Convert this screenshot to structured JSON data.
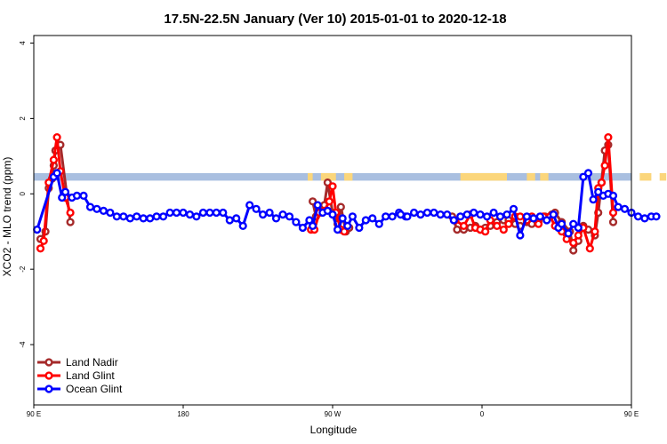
{
  "chart_data": {
    "type": "line",
    "title": "17.5N-22.5N January (Ver 10)   2015-01-01 to 2020-12-18",
    "xlabel": "Longitude",
    "ylabel": "XCO2 - MLO trend (ppm)",
    "xlim": [
      90,
      450
    ],
    "ylim": [
      -5.6,
      4.2
    ],
    "x_ticks": [
      {
        "value": 90,
        "label": "90 E"
      },
      {
        "value": 180,
        "label": "180"
      },
      {
        "value": 270,
        "label": "90 W"
      },
      {
        "value": 360,
        "label": "0"
      },
      {
        "value": 450,
        "label": "90 E"
      },
      {
        "value": 540,
        "label": "180"
      }
    ],
    "y_ticks": [
      {
        "value": 4,
        "label": "4"
      },
      {
        "value": 2,
        "label": "2"
      },
      {
        "value": 0,
        "label": "0"
      },
      {
        "value": -2,
        "label": "-2"
      },
      {
        "value": -4,
        "label": "-4"
      }
    ],
    "legend_position": "bottom-left",
    "landmask_band": {
      "y_range": [
        0.35,
        0.55
      ],
      "ocean_color": "#a9bfe0",
      "land_color": "#fbd67b",
      "land_segments": [
        [
          255,
          258
        ],
        [
          263,
          272
        ],
        [
          277,
          282
        ],
        [
          347,
          375
        ],
        [
          387,
          392
        ],
        [
          395,
          400
        ],
        [
          455,
          462
        ],
        [
          467,
          471
        ]
      ]
    },
    "series": [
      {
        "name": "Land Nadir",
        "color": "#a52a2a",
        "segments": [
          [
            [
              94,
              -1.2
            ],
            [
              97,
              -1.0
            ],
            [
              99,
              0.15
            ],
            [
              101,
              0.4
            ],
            [
              102,
              0.75
            ],
            [
              103,
              1.15
            ],
            [
              105,
              1.3
            ],
            [
              106,
              1.3
            ],
            [
              112,
              -0.75
            ]
          ],
          [
            [
              258,
              -0.2
            ],
            [
              260,
              -0.6
            ],
            [
              265,
              -0.3
            ],
            [
              267,
              0.3
            ],
            [
              270,
              -0.5
            ],
            [
              273,
              -0.8
            ],
            [
              275,
              -0.35
            ],
            [
              278,
              -1.0
            ],
            [
              280,
              -0.9
            ]
          ],
          [
            [
              342,
              -0.6
            ],
            [
              345,
              -0.95
            ],
            [
              349,
              -0.95
            ],
            [
              353,
              -0.9
            ],
            [
              356,
              -0.85
            ],
            [
              359,
              -0.95
            ],
            [
              362,
              -0.9
            ],
            [
              365,
              -0.85
            ],
            [
              369,
              -0.75
            ],
            [
              373,
              -0.7
            ],
            [
              376,
              -0.7
            ],
            [
              380,
              -0.8
            ],
            [
              383,
              -0.85
            ],
            [
              387,
              -0.75
            ],
            [
              390,
              -0.8
            ],
            [
              394,
              -0.75
            ],
            [
              398,
              -0.6
            ],
            [
              402,
              -0.55
            ],
            [
              404,
              -0.5
            ],
            [
              408,
              -0.75
            ],
            [
              413,
              -1.0
            ],
            [
              415,
              -1.5
            ],
            [
              418,
              -1.25
            ],
            [
              421,
              -0.85
            ],
            [
              424,
              -0.95
            ],
            [
              428,
              -1.1
            ],
            [
              430,
              -0.5
            ],
            [
              432,
              0.3
            ],
            [
              434,
              1.15
            ],
            [
              436,
              1.3
            ],
            [
              439,
              -0.75
            ]
          ]
        ]
      },
      {
        "name": "Land Glint",
        "color": "#ff0000",
        "segments": [
          [
            [
              94,
              -1.45
            ],
            [
              96,
              -1.25
            ],
            [
              99,
              0.3
            ],
            [
              102,
              0.9
            ],
            [
              104,
              1.5
            ],
            [
              106,
              0.6
            ],
            [
              109,
              -0.1
            ],
            [
              112,
              -0.5
            ]
          ],
          [
            [
              257,
              -0.95
            ],
            [
              259,
              -0.95
            ],
            [
              262,
              -0.5
            ],
            [
              265,
              -0.45
            ],
            [
              268,
              -0.2
            ],
            [
              270,
              0.2
            ],
            [
              272,
              -0.5
            ],
            [
              275,
              -0.95
            ],
            [
              277,
              -1.0
            ]
          ],
          [
            [
              344,
              -0.7
            ],
            [
              349,
              -0.85
            ],
            [
              353,
              -0.55
            ],
            [
              356,
              -0.9
            ],
            [
              359,
              -0.95
            ],
            [
              362,
              -1.0
            ],
            [
              365,
              -0.7
            ],
            [
              369,
              -0.85
            ],
            [
              373,
              -0.95
            ],
            [
              376,
              -0.8
            ],
            [
              380,
              -0.6
            ],
            [
              383,
              -0.6
            ],
            [
              387,
              -0.7
            ],
            [
              390,
              -0.6
            ],
            [
              394,
              -0.8
            ],
            [
              397,
              -0.6
            ],
            [
              401,
              -0.6
            ],
            [
              404,
              -0.85
            ],
            [
              408,
              -1.0
            ],
            [
              411,
              -1.2
            ],
            [
              415,
              -1.3
            ],
            [
              418,
              -1.1
            ],
            [
              421,
              -0.9
            ],
            [
              425,
              -1.45
            ],
            [
              428,
              -1.0
            ],
            [
              430,
              0.15
            ],
            [
              432,
              0.3
            ],
            [
              434,
              0.75
            ],
            [
              436,
              1.5
            ],
            [
              439,
              -0.5
            ]
          ]
        ]
      },
      {
        "name": "Ocean Glint",
        "color": "#0000ff",
        "segments": [
          [
            [
              92,
              -0.95
            ],
            [
              102,
              0.45
            ],
            [
              104,
              0.55
            ],
            [
              107,
              -0.1
            ],
            [
              109,
              0.05
            ],
            [
              113,
              -0.1
            ],
            [
              116,
              -0.05
            ],
            [
              120,
              -0.05
            ],
            [
              124,
              -0.35
            ],
            [
              128,
              -0.4
            ],
            [
              132,
              -0.45
            ],
            [
              136,
              -0.5
            ],
            [
              140,
              -0.6
            ],
            [
              144,
              -0.6
            ],
            [
              148,
              -0.65
            ],
            [
              152,
              -0.6
            ],
            [
              156,
              -0.65
            ],
            [
              160,
              -0.65
            ],
            [
              164,
              -0.6
            ],
            [
              168,
              -0.6
            ],
            [
              172,
              -0.5
            ],
            [
              176,
              -0.5
            ],
            [
              180,
              -0.5
            ],
            [
              184,
              -0.55
            ],
            [
              188,
              -0.6
            ],
            [
              192,
              -0.5
            ],
            [
              196,
              -0.5
            ],
            [
              200,
              -0.5
            ],
            [
              204,
              -0.5
            ],
            [
              208,
              -0.7
            ],
            [
              212,
              -0.65
            ],
            [
              216,
              -0.85
            ],
            [
              220,
              -0.3
            ],
            [
              224,
              -0.4
            ],
            [
              228,
              -0.55
            ],
            [
              232,
              -0.5
            ],
            [
              236,
              -0.65
            ],
            [
              240,
              -0.55
            ],
            [
              244,
              -0.6
            ],
            [
              248,
              -0.75
            ],
            [
              252,
              -0.9
            ],
            [
              256,
              -0.7
            ],
            [
              258,
              -0.85
            ],
            [
              261,
              -0.3
            ],
            [
              264,
              -0.5
            ],
            [
              267,
              -0.45
            ],
            [
              270,
              -0.55
            ],
            [
              273,
              -0.95
            ],
            [
              276,
              -0.65
            ],
            [
              279,
              -0.85
            ],
            [
              282,
              -0.6
            ],
            [
              286,
              -0.9
            ],
            [
              290,
              -0.7
            ],
            [
              294,
              -0.65
            ],
            [
              298,
              -0.8
            ],
            [
              302,
              -0.6
            ],
            [
              306,
              -0.6
            ],
            [
              310,
              -0.5
            ],
            [
              314,
              -0.6
            ]
          ],
          [
            [
              311,
              -0.55
            ],
            [
              315,
              -0.6
            ],
            [
              319,
              -0.5
            ],
            [
              323,
              -0.55
            ],
            [
              327,
              -0.5
            ],
            [
              331,
              -0.5
            ],
            [
              335,
              -0.55
            ],
            [
              339,
              -0.55
            ],
            [
              343,
              -0.7
            ],
            [
              347,
              -0.6
            ],
            [
              351,
              -0.55
            ],
            [
              355,
              -0.5
            ],
            [
              359,
              -0.55
            ],
            [
              363,
              -0.6
            ],
            [
              367,
              -0.5
            ],
            [
              371,
              -0.6
            ],
            [
              375,
              -0.55
            ],
            [
              379,
              -0.4
            ],
            [
              383,
              -1.1
            ],
            [
              387,
              -0.6
            ],
            [
              391,
              -0.65
            ],
            [
              395,
              -0.6
            ],
            [
              399,
              -0.7
            ],
            [
              403,
              -0.55
            ],
            [
              406,
              -0.9
            ],
            [
              408,
              -0.8
            ],
            [
              412,
              -1.05
            ],
            [
              415,
              -0.8
            ],
            [
              418,
              -0.9
            ],
            [
              421,
              0.45
            ],
            [
              424,
              0.55
            ],
            [
              427,
              -0.15
            ],
            [
              430,
              0.05
            ],
            [
              433,
              -0.05
            ],
            [
              436,
              0.0
            ],
            [
              439,
              -0.05
            ],
            [
              442,
              -0.35
            ],
            [
              446,
              -0.4
            ],
            [
              450,
              -0.5
            ],
            [
              454,
              -0.6
            ],
            [
              458,
              -0.65
            ],
            [
              462,
              -0.6
            ],
            [
              465,
              -0.6
            ]
          ]
        ]
      }
    ]
  }
}
